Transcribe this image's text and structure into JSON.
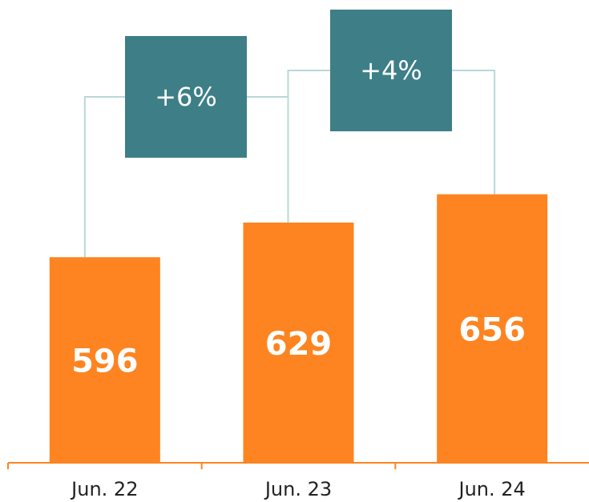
{
  "chart_data": {
    "type": "bar",
    "categories": [
      "Jun. 22",
      "Jun. 23",
      "Jun. 24"
    ],
    "values": [
      596,
      629,
      656
    ],
    "color": "#fd8420",
    "ylim": [
      400,
      700
    ],
    "annotations": [
      "+6%",
      "+4%"
    ],
    "annotation_color": "#3e7f87"
  }
}
